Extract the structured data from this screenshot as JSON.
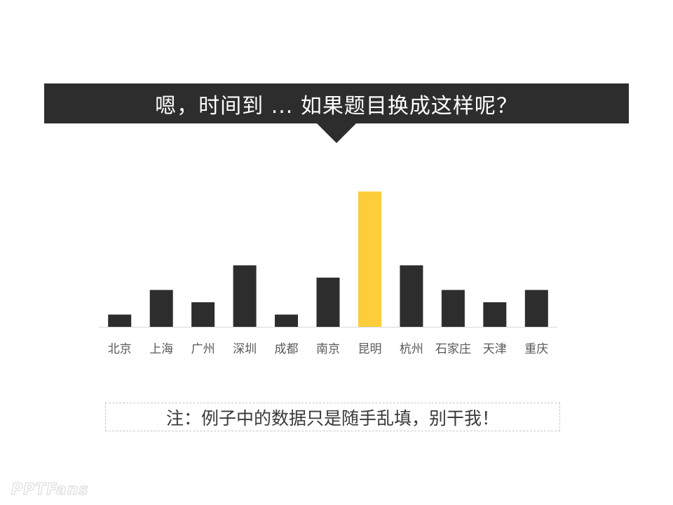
{
  "header": {
    "title": "嗯，时间到 ... 如果题目换成这样呢？"
  },
  "chart_data": {
    "type": "bar",
    "categories": [
      "北京",
      "上海",
      "广州",
      "深圳",
      "成都",
      "南京",
      "昆明",
      "杭州",
      "石家庄",
      "天津",
      "重庆"
    ],
    "values": [
      1,
      3,
      2,
      5,
      1,
      4,
      11,
      5,
      3,
      2,
      3
    ],
    "highlight_index": 6,
    "bar_color": "#2d2d2d",
    "highlight_color": "#fdcd3b",
    "axis_color": "#d9d9d9",
    "label_color": "#595959",
    "title": "",
    "xlabel": "",
    "ylabel": "",
    "ylim": [
      0,
      11
    ],
    "grid": false
  },
  "footer": {
    "note": "注：例子中的数据只是随手乱填，别干我！"
  },
  "logo": {
    "text": "PPTFans"
  }
}
